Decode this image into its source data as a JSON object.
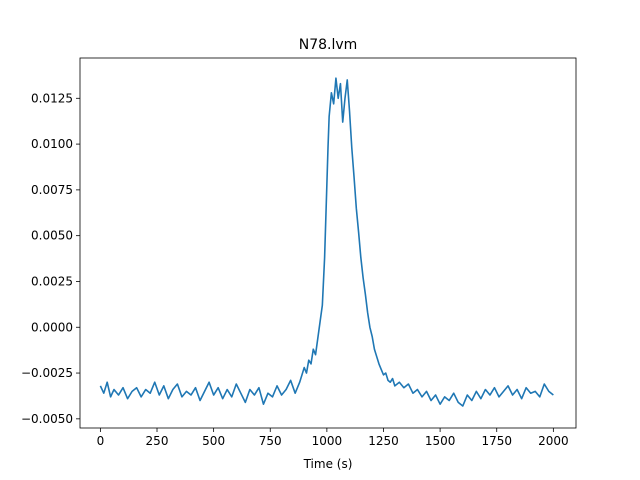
{
  "chart_data": {
    "type": "line",
    "title": "N78.lvm",
    "xlabel": "Time (s)",
    "ylabel": "",
    "xlim": [
      -90,
      2100
    ],
    "ylim": [
      -0.0055,
      0.0147
    ],
    "grid": false,
    "legend": "none",
    "x_ticks": [
      0,
      250,
      500,
      750,
      1000,
      1250,
      1500,
      1750,
      2000
    ],
    "x_tick_labels": [
      "0",
      "250",
      "500",
      "750",
      "1000",
      "1250",
      "1500",
      "1750",
      "2000"
    ],
    "y_ticks": [
      -0.005,
      -0.0025,
      0.0,
      0.0025,
      0.005,
      0.0075,
      0.01,
      0.0125
    ],
    "y_tick_labels": [
      "−0.0050",
      "−0.0025",
      "0.0000",
      "0.0025",
      "0.0050",
      "0.0075",
      "0.0100",
      "0.0125"
    ],
    "series": [
      {
        "color": "#1f77b4",
        "x": [
          0,
          15,
          30,
          45,
          60,
          80,
          100,
          120,
          140,
          160,
          180,
          200,
          220,
          240,
          260,
          280,
          300,
          320,
          340,
          360,
          380,
          400,
          420,
          440,
          460,
          480,
          500,
          520,
          540,
          560,
          580,
          600,
          620,
          640,
          660,
          680,
          700,
          720,
          740,
          760,
          780,
          800,
          820,
          840,
          860,
          880,
          900,
          910,
          920,
          930,
          940,
          950,
          960,
          970,
          980,
          990,
          1000,
          1005,
          1010,
          1020,
          1030,
          1040,
          1050,
          1060,
          1070,
          1080,
          1090,
          1100,
          1110,
          1120,
          1130,
          1140,
          1150,
          1160,
          1170,
          1180,
          1190,
          1200,
          1210,
          1220,
          1230,
          1240,
          1250,
          1260,
          1270,
          1280,
          1290,
          1300,
          1320,
          1340,
          1360,
          1380,
          1400,
          1420,
          1440,
          1460,
          1480,
          1500,
          1520,
          1540,
          1560,
          1580,
          1600,
          1620,
          1640,
          1660,
          1680,
          1700,
          1720,
          1740,
          1760,
          1780,
          1800,
          1820,
          1840,
          1860,
          1880,
          1900,
          1920,
          1940,
          1960,
          1980,
          2000
        ],
        "y": [
          -0.0032,
          -0.0036,
          -0.003,
          -0.0038,
          -0.0034,
          -0.0037,
          -0.0033,
          -0.0039,
          -0.0035,
          -0.0033,
          -0.0038,
          -0.0034,
          -0.0036,
          -0.003,
          -0.0037,
          -0.0032,
          -0.0039,
          -0.0034,
          -0.0031,
          -0.0038,
          -0.0035,
          -0.0037,
          -0.0033,
          -0.004,
          -0.0035,
          -0.003,
          -0.0037,
          -0.0033,
          -0.0039,
          -0.0034,
          -0.0038,
          -0.0031,
          -0.0036,
          -0.0041,
          -0.0034,
          -0.0037,
          -0.0033,
          -0.0042,
          -0.0036,
          -0.0038,
          -0.0032,
          -0.0037,
          -0.0034,
          -0.0029,
          -0.0036,
          -0.003,
          -0.0022,
          -0.0025,
          -0.0018,
          -0.002,
          -0.0012,
          -0.0015,
          -0.0006,
          0.0003,
          0.0012,
          0.0038,
          0.0078,
          0.0098,
          0.0115,
          0.0128,
          0.0122,
          0.0136,
          0.0125,
          0.0133,
          0.0112,
          0.0125,
          0.0135,
          0.0118,
          0.0098,
          0.0082,
          0.0065,
          0.0052,
          0.0038,
          0.0027,
          0.0018,
          0.0008,
          0.0,
          -0.0005,
          -0.0012,
          -0.0016,
          -0.002,
          -0.0023,
          -0.0026,
          -0.0025,
          -0.0029,
          -0.003,
          -0.0028,
          -0.0032,
          -0.003,
          -0.0033,
          -0.0031,
          -0.0036,
          -0.0034,
          -0.0038,
          -0.0035,
          -0.004,
          -0.0037,
          -0.0042,
          -0.0038,
          -0.004,
          -0.0036,
          -0.0041,
          -0.0043,
          -0.0037,
          -0.004,
          -0.0035,
          -0.0039,
          -0.0034,
          -0.0037,
          -0.0033,
          -0.0038,
          -0.0035,
          -0.0032,
          -0.0037,
          -0.0034,
          -0.0039,
          -0.0033,
          -0.0036,
          -0.0035,
          -0.0038,
          -0.0031,
          -0.0035,
          -0.0037
        ]
      }
    ]
  }
}
